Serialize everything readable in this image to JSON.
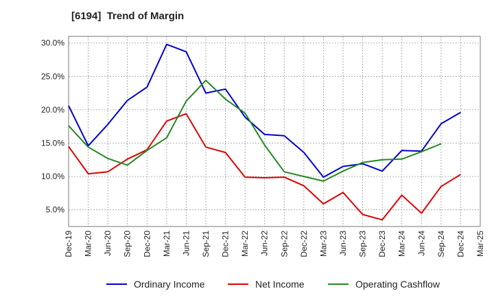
{
  "chart_data": {
    "type": "line",
    "title": "[6194]  Trend of Margin",
    "xlabel": "",
    "ylabel": "",
    "x": [
      "Dec-19",
      "Mar-20",
      "Jun-20",
      "Sep-20",
      "Dec-20",
      "Mar-21",
      "Jun-21",
      "Sep-21",
      "Dec-21",
      "Mar-22",
      "Jun-22",
      "Sep-22",
      "Dec-22",
      "Mar-23",
      "Jun-23",
      "Sep-23",
      "Dec-23",
      "Mar-24",
      "Jun-24",
      "Sep-24",
      "Dec-24",
      "Mar-25"
    ],
    "ylim": [
      2.5,
      31.0
    ],
    "yticks": [
      5.0,
      10.0,
      15.0,
      20.0,
      25.0,
      30.0
    ],
    "ytick_labels": [
      "5.0%",
      "10.0%",
      "15.0%",
      "20.0%",
      "25.0%",
      "30.0%"
    ],
    "grid": true,
    "legend_position": "bottom",
    "series": [
      {
        "name": "Ordinary Income",
        "color": "#0000cc",
        "values": [
          20.6,
          14.6,
          17.8,
          21.4,
          23.4,
          29.8,
          28.7,
          22.5,
          23.1,
          18.9,
          16.3,
          16.1,
          13.6,
          9.9,
          11.5,
          11.9,
          10.8,
          13.9,
          13.8,
          17.9,
          19.6,
          null
        ]
      },
      {
        "name": "Net Income",
        "color": "#dd0000",
        "values": [
          14.5,
          10.4,
          10.7,
          12.6,
          14.0,
          18.3,
          19.4,
          14.4,
          13.6,
          9.9,
          9.8,
          9.9,
          8.6,
          5.9,
          7.6,
          4.3,
          3.5,
          7.2,
          4.5,
          8.5,
          10.3,
          null
        ]
      },
      {
        "name": "Operating Cashflow",
        "color": "#228822",
        "values": [
          17.6,
          14.4,
          12.7,
          11.7,
          13.9,
          15.8,
          21.3,
          24.4,
          21.6,
          19.5,
          14.7,
          10.7,
          10.0,
          9.3,
          10.8,
          12.1,
          12.5,
          12.6,
          13.7,
          14.9,
          null,
          null
        ]
      }
    ]
  }
}
